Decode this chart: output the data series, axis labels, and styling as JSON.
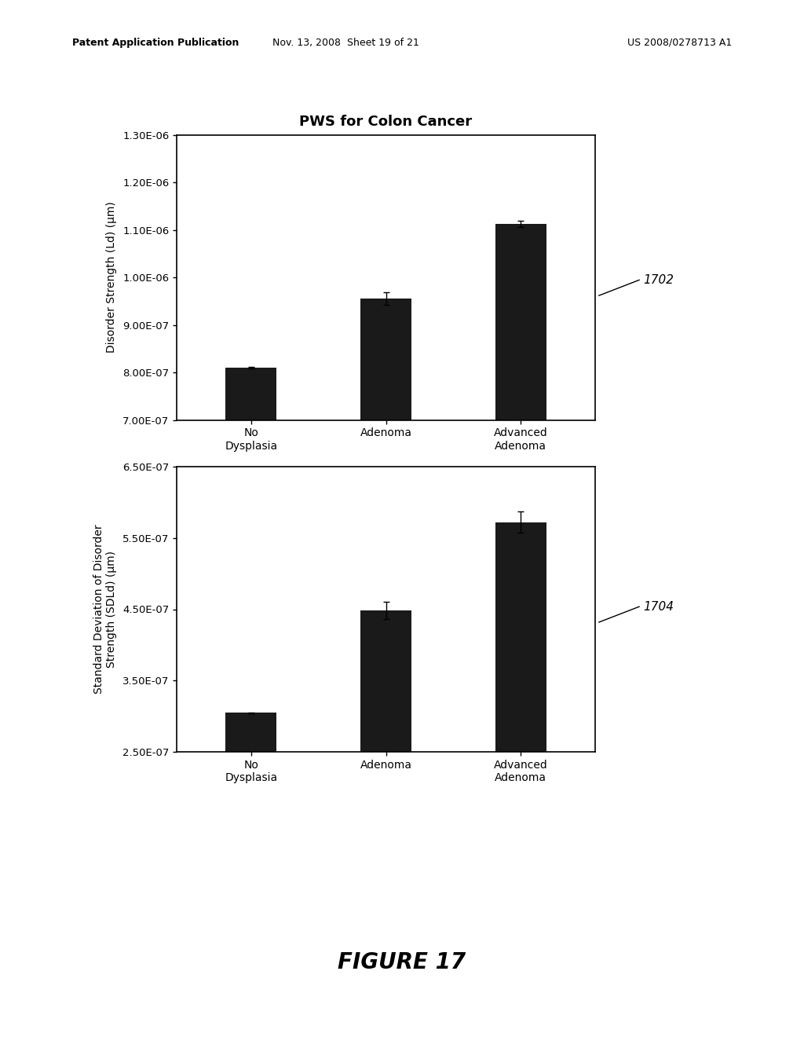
{
  "chart1": {
    "title": "PWS for Colon Cancer",
    "categories": [
      "No\nDysplasia",
      "Adenoma",
      "Advanced\nAdenoma"
    ],
    "values": [
      8.1e-07,
      9.55e-07,
      1.113e-06
    ],
    "errors": [
      1.2e-09,
      1.3e-08,
      7e-09
    ],
    "ylabel": "Disorder Strength (Ld) (μm)",
    "ylim": [
      7e-07,
      1.3e-06
    ],
    "yticks": [
      7e-07,
      8e-07,
      9e-07,
      1e-06,
      1.1e-06,
      1.2e-06,
      1.3e-06
    ],
    "yticklabels": [
      "7.00E-07",
      "8.00E-07",
      "9.00E-07",
      "1.00E-06",
      "1.10E-06",
      "1.20E-06",
      "1.30E-06"
    ],
    "label": "1702"
  },
  "chart2": {
    "categories": [
      "No\nDysplasia",
      "Adenoma",
      "Advanced\nAdenoma"
    ],
    "values": [
      3.05e-07,
      4.48e-07,
      5.72e-07
    ],
    "errors": [
      5e-10,
      1.2e-08,
      1.5e-08
    ],
    "ylabel": "Standard Deviation of Disorder\nStrength (SDLd) (μm)",
    "ylim": [
      2.5e-07,
      6.5e-07
    ],
    "yticks": [
      2.5e-07,
      3.5e-07,
      4.5e-07,
      5.5e-07,
      6.5e-07
    ],
    "yticklabels": [
      "2.50E-07",
      "3.50E-07",
      "4.50E-07",
      "5.50E-07",
      "6.50E-07"
    ],
    "label": "1704"
  },
  "bar_color": "#1a1a1a",
  "bar_width": 0.38,
  "header_left": "Patent Application Publication",
  "header_mid": "Nov. 13, 2008  Sheet 19 of 21",
  "header_right": "US 2008/0278713 A1",
  "figure_label": "FIGURE 17",
  "background_color": "#ffffff"
}
